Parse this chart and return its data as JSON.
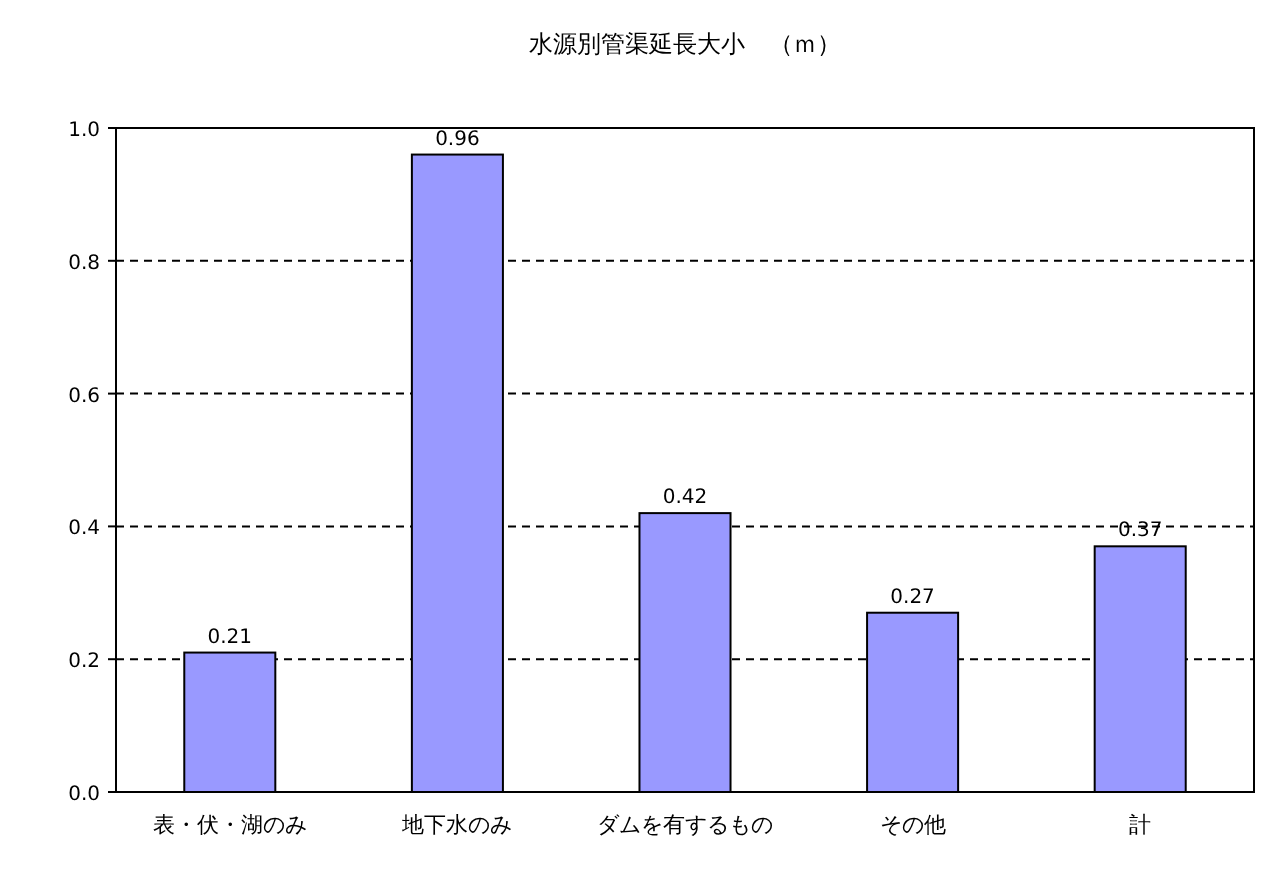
{
  "chart_data": {
    "type": "bar",
    "title": "水源別管渠延長大小　（ｍ）",
    "categories": [
      "表・伏・湖のみ",
      "地下水のみ",
      "ダムを有するもの",
      "その他",
      "計"
    ],
    "values": [
      0.21,
      0.96,
      0.42,
      0.27,
      0.37
    ],
    "color": "#9999ff",
    "ylim": [
      0,
      1
    ],
    "yticks": [
      {
        "value": 0,
        "label": "0.0"
      },
      0.2,
      0.4,
      0.6,
      0.8,
      {
        "value": 1,
        "label": "1.0"
      }
    ],
    "grid": "y",
    "data_labels": true
  }
}
